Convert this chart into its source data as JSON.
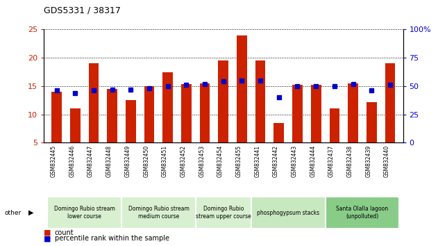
{
  "title": "GDS5331 / 38317",
  "samples": [
    "GSM832445",
    "GSM832446",
    "GSM832447",
    "GSM832448",
    "GSM832449",
    "GSM832450",
    "GSM832451",
    "GSM832452",
    "GSM832453",
    "GSM832454",
    "GSM832455",
    "GSM832441",
    "GSM832442",
    "GSM832443",
    "GSM832444",
    "GSM832437",
    "GSM832438",
    "GSM832439",
    "GSM832440"
  ],
  "counts": [
    14.0,
    11.0,
    19.0,
    14.5,
    12.5,
    15.0,
    17.5,
    15.3,
    15.5,
    19.5,
    24.0,
    19.5,
    8.5,
    15.2,
    15.2,
    11.0,
    15.5,
    12.2,
    19.0
  ],
  "percentiles": [
    46,
    44,
    46,
    47,
    47,
    48,
    50,
    51,
    52,
    54,
    55,
    55,
    40,
    50,
    50,
    50,
    52,
    46,
    51
  ],
  "ylim_left": [
    5,
    25
  ],
  "ylim_right": [
    0,
    100
  ],
  "yticks_left": [
    5,
    10,
    15,
    20,
    25
  ],
  "yticks_right": [
    0,
    25,
    50,
    75,
    100
  ],
  "bar_color": "#cc2200",
  "dot_color": "#0000cc",
  "groups": [
    {
      "label": "Domingo Rubio stream\nlower course",
      "start": 0,
      "end": 4,
      "color": "#d8f0d0"
    },
    {
      "label": "Domingo Rubio stream\nmedium course",
      "start": 4,
      "end": 8,
      "color": "#d8f0d0"
    },
    {
      "label": "Domingo Rubio\nstream upper course",
      "start": 8,
      "end": 11,
      "color": "#d8f0d0"
    },
    {
      "label": "phosphogypsum stacks",
      "start": 11,
      "end": 15,
      "color": "#c8e8c0"
    },
    {
      "label": "Santa Olalla lagoon\n(unpolluted)",
      "start": 15,
      "end": 19,
      "color": "#88cc88"
    }
  ],
  "legend_count": "count",
  "legend_percentile": "percentile rank within the sample",
  "other_label": "other"
}
